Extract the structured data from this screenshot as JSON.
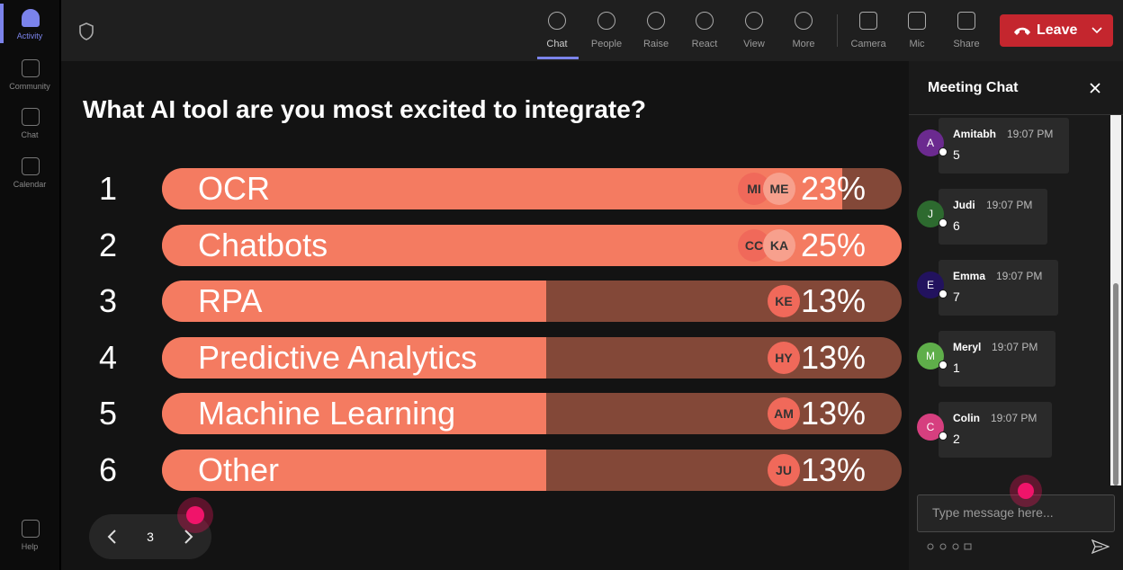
{
  "rail": [
    "Activity",
    "Community",
    "Chat",
    "Calendar",
    "Help"
  ],
  "toolbar": [
    "Chat",
    "People",
    "Raise",
    "React",
    "View",
    "More",
    "Camera",
    "Mic",
    "Share"
  ],
  "leave": "Leave",
  "poll": {
    "question": "What AI tool are you most excited to integrate?",
    "options": [
      {
        "rank": 1,
        "label": "OCR",
        "avatars": [
          "MI",
          "ME"
        ],
        "percent": 23,
        "percent_label": "23%"
      },
      {
        "rank": 2,
        "label": "Chatbots",
        "avatars": [
          "CC",
          "KA"
        ],
        "percent": 25,
        "percent_label": "25%"
      },
      {
        "rank": 3,
        "label": "RPA",
        "avatars": [
          "KE"
        ],
        "percent": 13,
        "percent_label": "13%"
      },
      {
        "rank": 4,
        "label": "Predictive Analytics",
        "avatars": [
          "HY"
        ],
        "percent": 13,
        "percent_label": "13%"
      },
      {
        "rank": 5,
        "label": "Machine Learning",
        "avatars": [
          "AM"
        ],
        "percent": 13,
        "percent_label": "13%"
      },
      {
        "rank": 6,
        "label": "Other",
        "avatars": [
          "JU"
        ],
        "percent": 13,
        "percent_label": "13%"
      }
    ]
  },
  "pagination": {
    "page": 3
  },
  "chat": {
    "title": "Meeting Chat",
    "messages": [
      {
        "initial": "A",
        "name": "Amitabh",
        "time": "19:07 PM",
        "text": "5",
        "color": "#6b2a8f"
      },
      {
        "initial": "J",
        "name": "Judi",
        "time": "19:07 PM",
        "text": "6",
        "color": "#2d6a2f"
      },
      {
        "initial": "E",
        "name": "Emma",
        "time": "19:07 PM",
        "text": "7",
        "color": "#22125e"
      },
      {
        "initial": "M",
        "name": "Meryl",
        "time": "19:07 PM",
        "text": "1",
        "color": "#5fae4a"
      },
      {
        "initial": "C",
        "name": "Colin",
        "time": "19:07 PM",
        "text": "2",
        "color": "#d63f7f"
      }
    ],
    "placeholder": "Type message here..."
  }
}
